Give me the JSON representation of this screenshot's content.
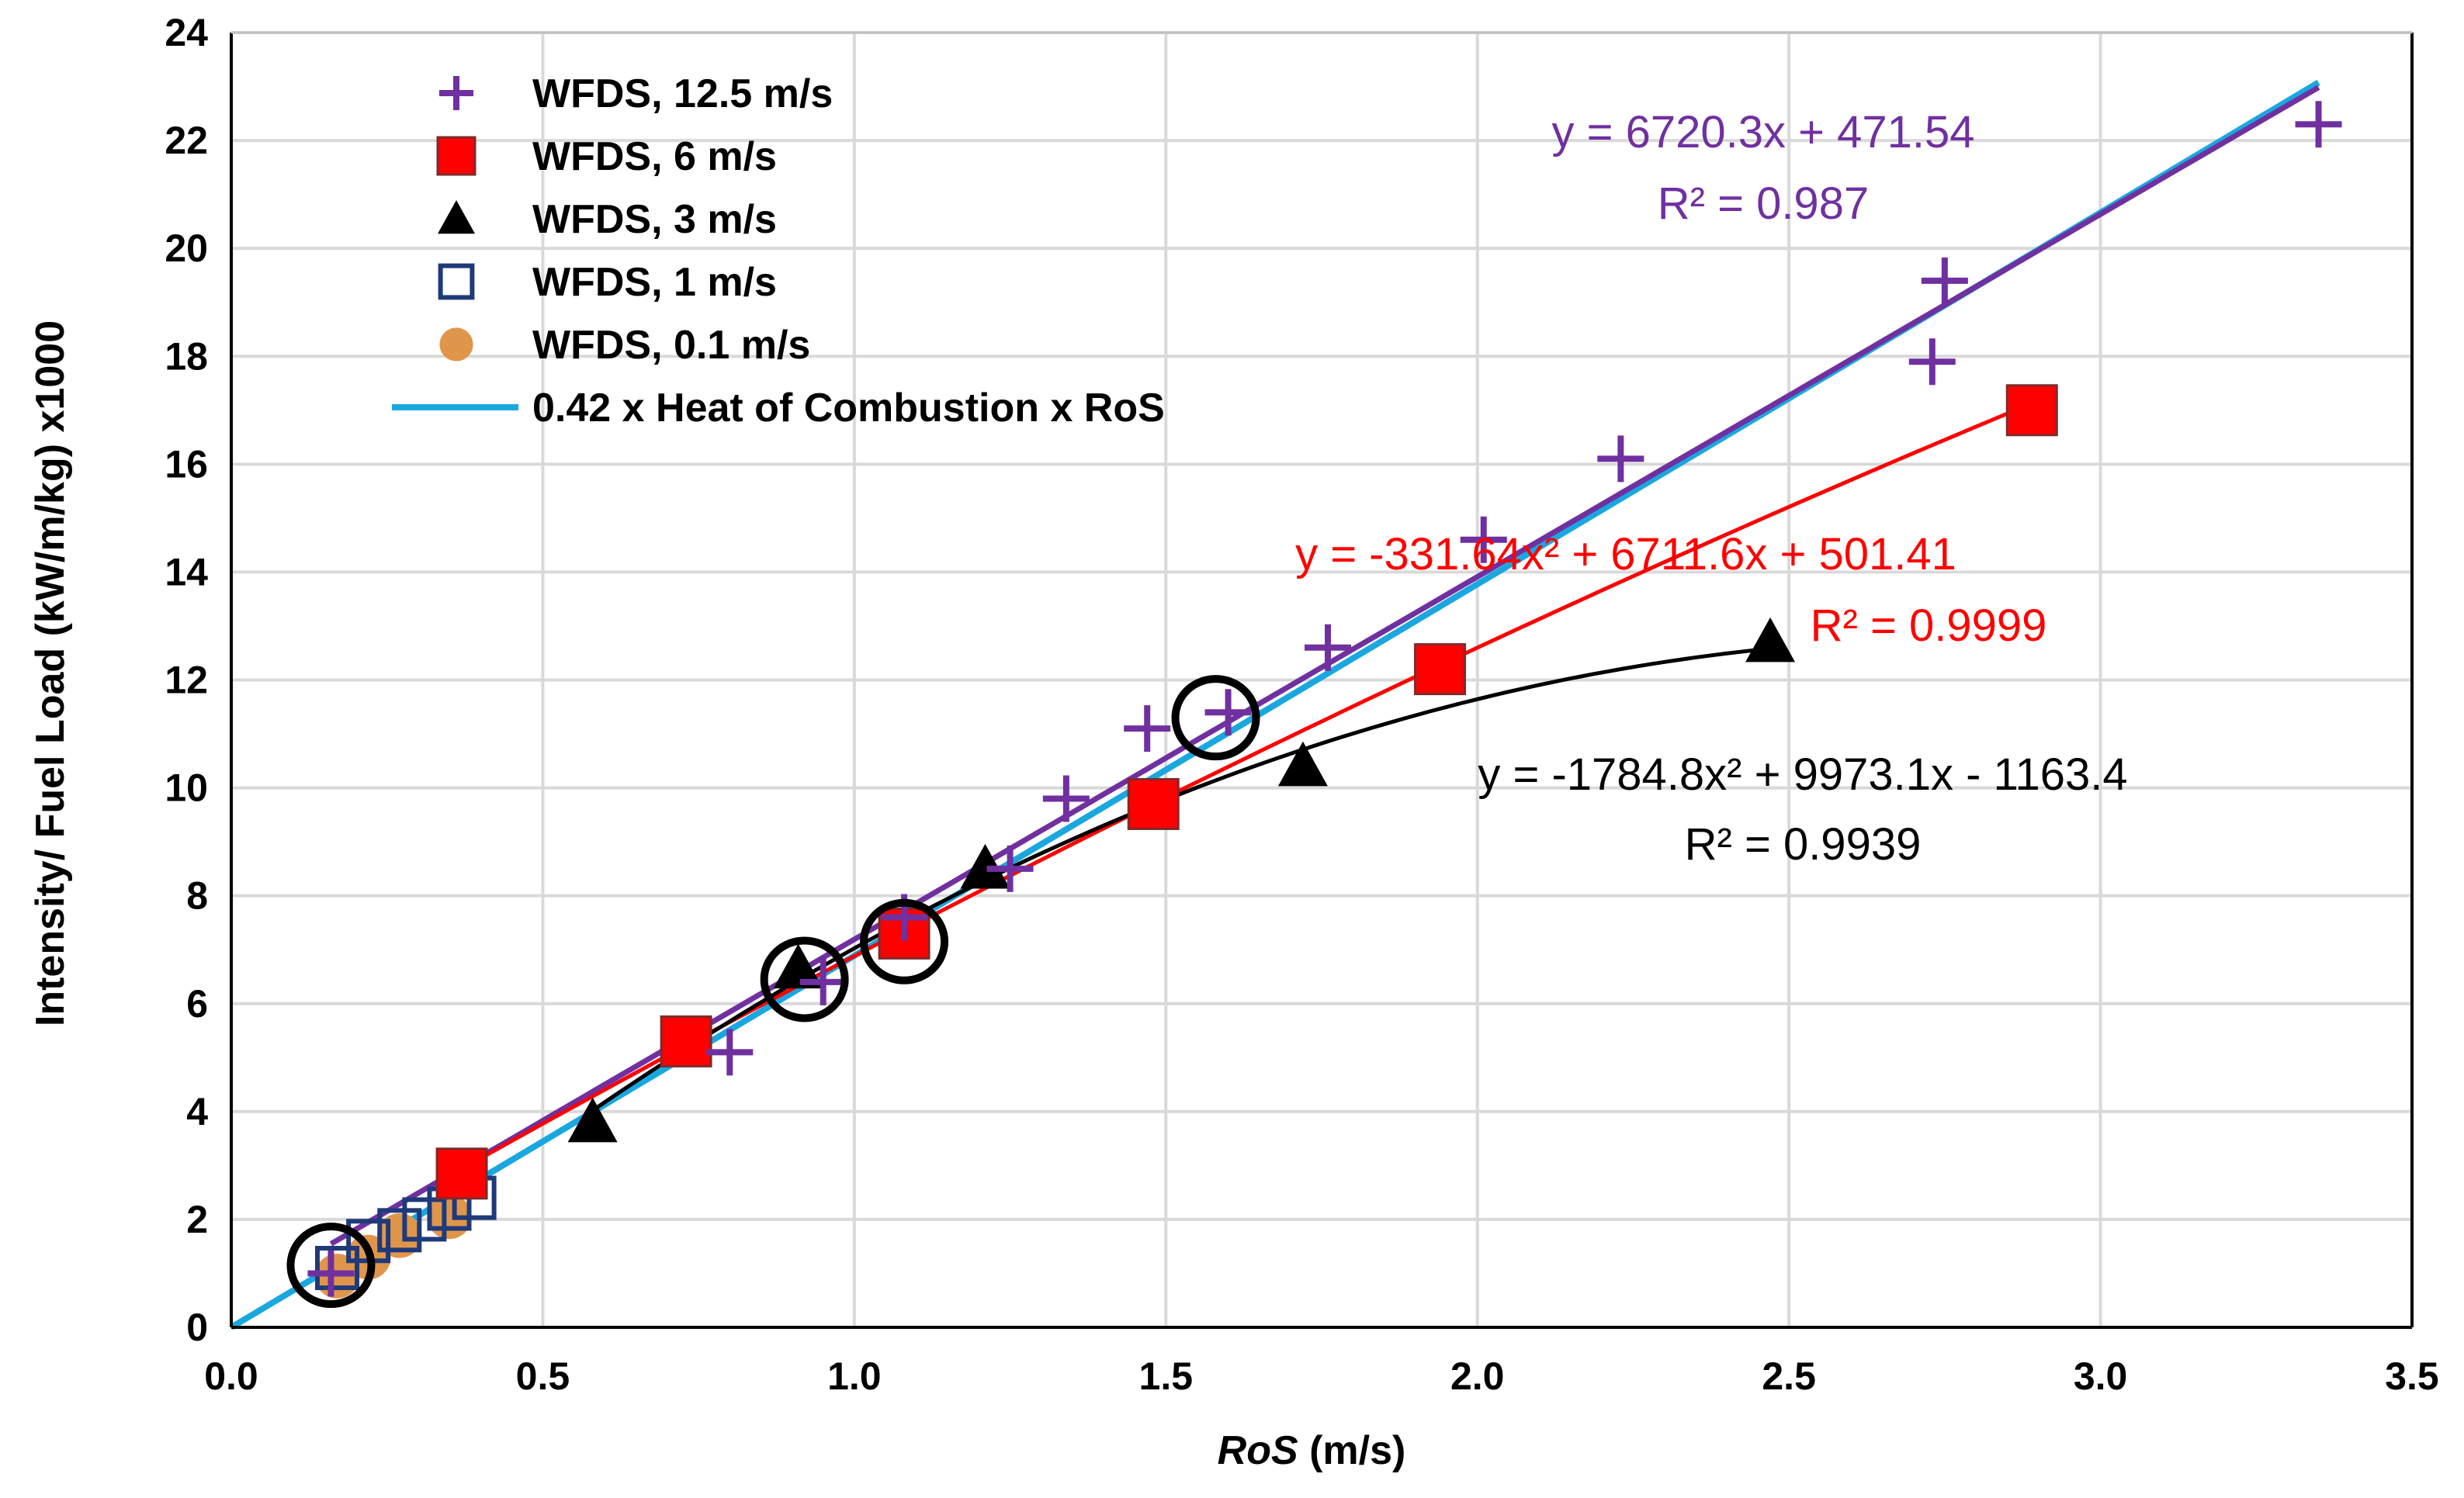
{
  "chart_data": {
    "type": "scatter",
    "xlabel_italic": "RoS",
    "xlabel_unit": " (m/s)",
    "ylabel": "Intensity/ Fuel Load (kW/m/kg) x1000",
    "xlim": [
      0,
      3.5
    ],
    "ylim": [
      0,
      24
    ],
    "x_ticks": [
      "0.0",
      "0.5",
      "1.0",
      "1.5",
      "2.0",
      "2.5",
      "3.0",
      "3.5"
    ],
    "y_ticks": [
      "0",
      "2",
      "4",
      "6",
      "8",
      "10",
      "12",
      "14",
      "16",
      "18",
      "20",
      "22",
      "24"
    ],
    "grid": true,
    "legend_position": "top-left",
    "series": [
      {
        "name": "WFDS, 12.5 m/s",
        "marker": "plus",
        "color": "#7030A0",
        "points": [
          [
            0.16,
            1.0
          ],
          [
            0.8,
            5.1
          ],
          [
            0.95,
            6.4
          ],
          [
            1.08,
            7.6
          ],
          [
            1.25,
            8.5
          ],
          [
            1.34,
            9.8
          ],
          [
            1.47,
            11.1
          ],
          [
            1.6,
            11.4
          ],
          [
            1.76,
            12.6
          ],
          [
            2.01,
            14.6
          ],
          [
            2.23,
            16.1
          ],
          [
            2.73,
            17.9
          ],
          [
            2.75,
            19.4
          ],
          [
            3.35,
            22.3
          ]
        ]
      },
      {
        "name": "WFDS, 6 m/s",
        "marker": "square",
        "color": "#FF0000",
        "points": [
          [
            0.37,
            2.85
          ],
          [
            0.73,
            5.3
          ],
          [
            1.08,
            7.3
          ],
          [
            1.48,
            9.7
          ],
          [
            1.94,
            12.2
          ],
          [
            2.89,
            17.0
          ]
        ]
      },
      {
        "name": "WFDS, 3 m/s",
        "marker": "triangle",
        "color": "#000000",
        "points": [
          [
            0.58,
            3.8
          ],
          [
            0.91,
            6.65
          ],
          [
            1.21,
            8.5
          ],
          [
            1.72,
            10.4
          ],
          [
            2.47,
            12.7
          ]
        ]
      },
      {
        "name": "WFDS, 1 m/s",
        "marker": "open-square",
        "color": "#1F3A7A",
        "points": [
          [
            0.17,
            1.1
          ],
          [
            0.22,
            1.6
          ],
          [
            0.27,
            1.8
          ],
          [
            0.31,
            2.0
          ],
          [
            0.35,
            2.2
          ],
          [
            0.39,
            2.4
          ]
        ]
      },
      {
        "name": "WFDS, 0.1 m/s",
        "marker": "circle",
        "color": "#E0964A",
        "points": [
          [
            0.17,
            0.95
          ],
          [
            0.22,
            1.3
          ],
          [
            0.27,
            1.7
          ],
          [
            0.35,
            2.05
          ]
        ]
      }
    ],
    "reference_line": {
      "name": "0.42 x Heat of Combustion x RoS",
      "color": "#1AA7E0",
      "slope": 6888,
      "intercept": 0,
      "x_range": [
        0,
        3.35
      ]
    },
    "trendlines": [
      {
        "series": "WFDS, 12.5 m/s",
        "color": "#7030A0",
        "coeffs": [
          0,
          6720.3,
          471.54
        ],
        "x_range": [
          0.16,
          3.35
        ],
        "equation": "y = 6720.3x + 471.54",
        "r2": "R² = 0.987"
      },
      {
        "series": "WFDS, 6 m/s",
        "color": "#FF0000",
        "coeffs": [
          -331.64,
          6711.6,
          501.41
        ],
        "x_range": [
          0.37,
          2.89
        ],
        "equation": "y = -331.64x² + 6711.6x + 501.41",
        "r2": "R² = 0.9999"
      },
      {
        "series": "WFDS, 3 m/s",
        "color": "#000000",
        "coeffs": [
          -1784.8,
          9973.1,
          -1163.4
        ],
        "x_range": [
          0.58,
          2.47
        ],
        "equation": "y = -1784.8x² + 9973.1x - 1163.4",
        "r2": "R² = 0.9939"
      }
    ],
    "highlight_circles": [
      [
        0.16,
        1.15
      ],
      [
        0.92,
        6.45
      ],
      [
        1.08,
        7.15
      ],
      [
        1.58,
        11.3
      ]
    ]
  }
}
